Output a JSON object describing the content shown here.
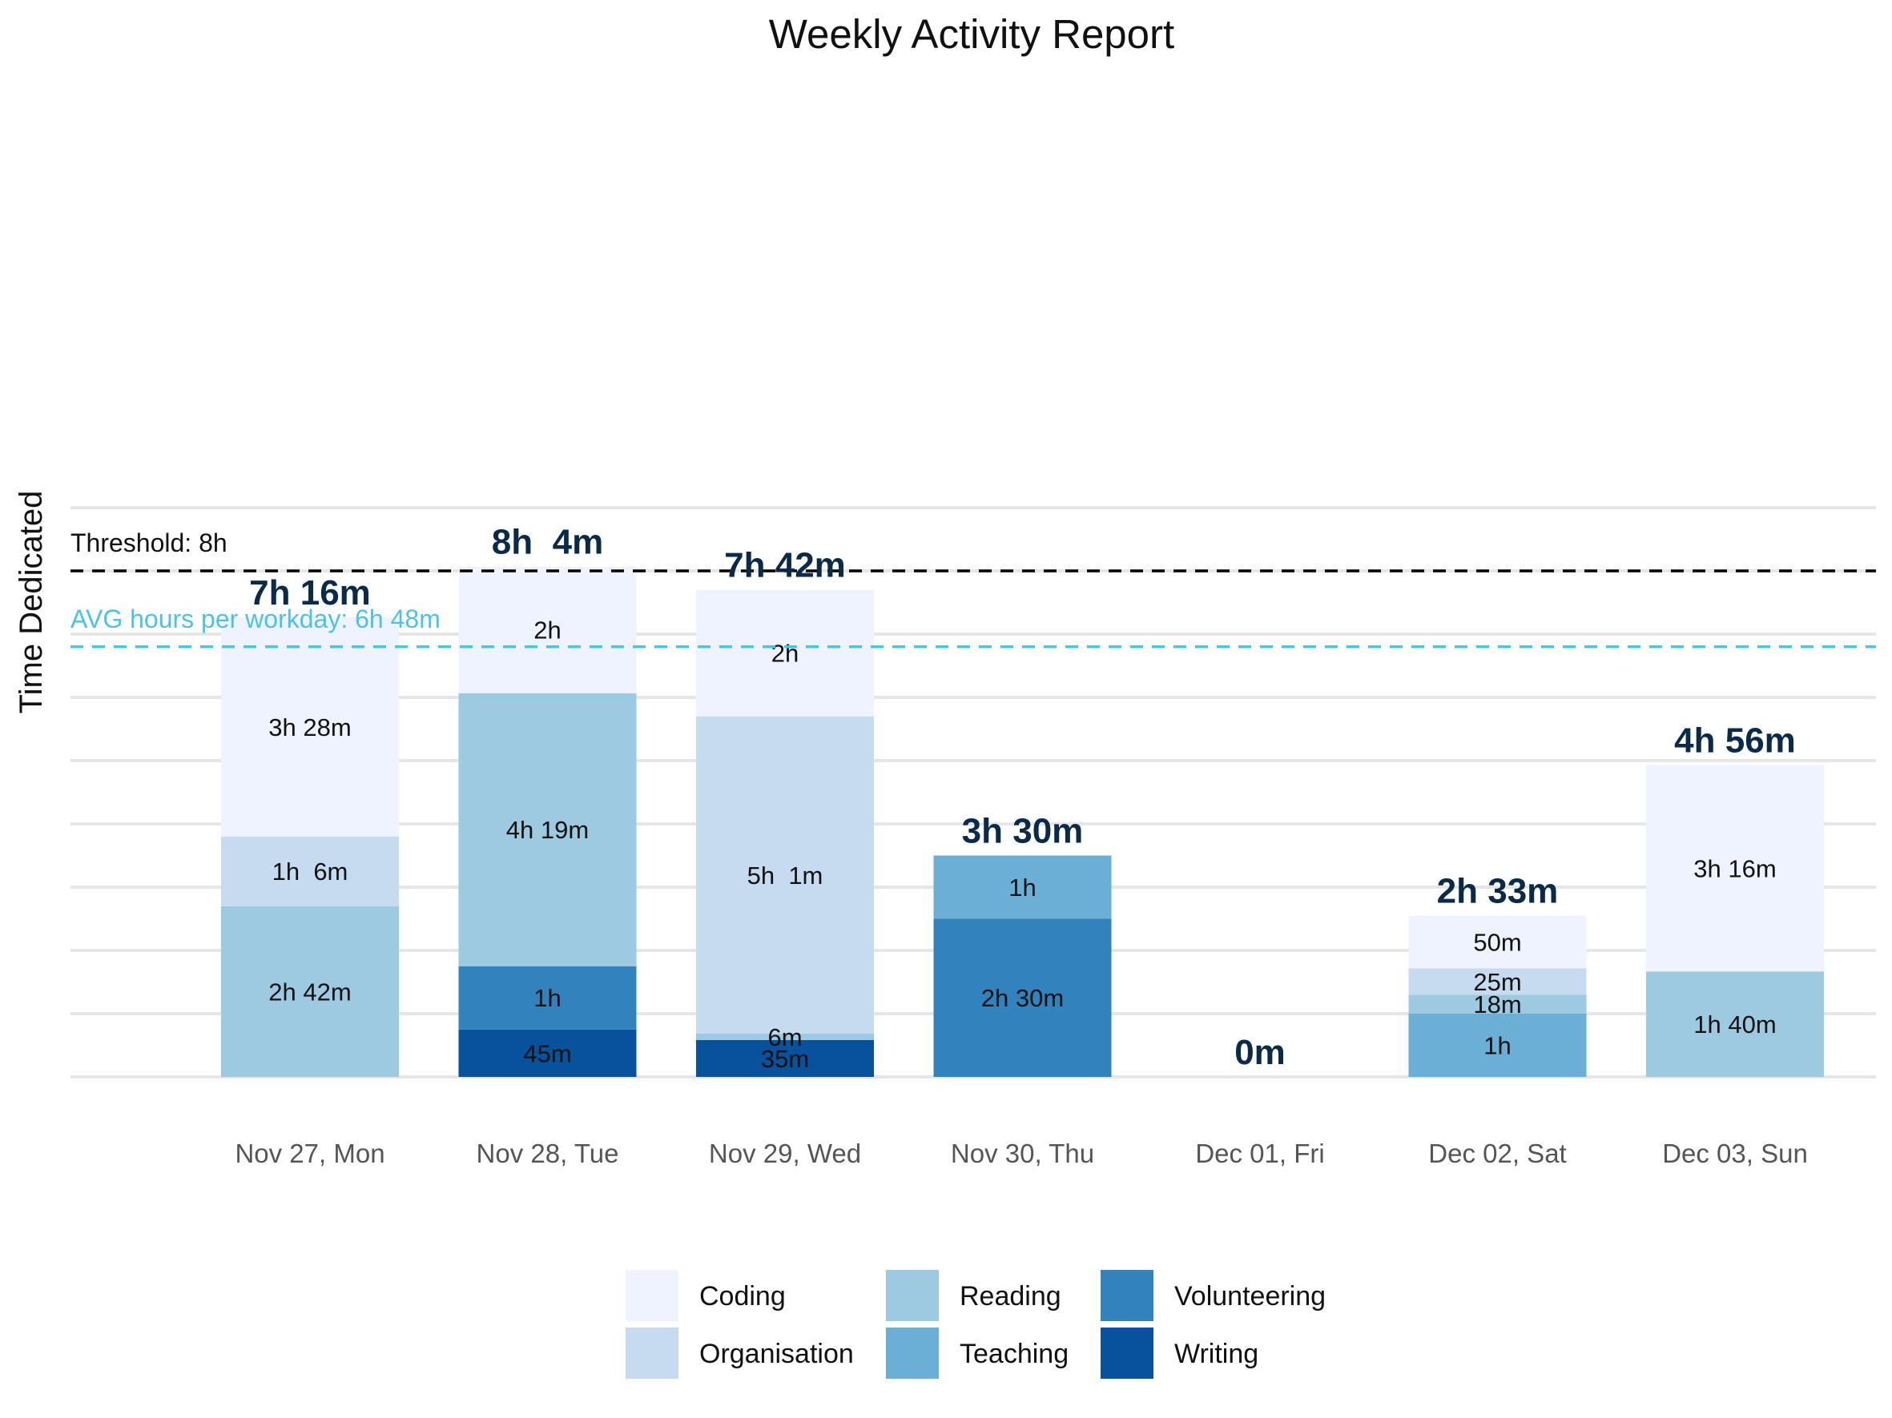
{
  "chart_data": {
    "type": "bar",
    "stacked": true,
    "title": "Weekly Activity Report",
    "xlabel": "",
    "ylabel": "Time Dedicated",
    "unit": "minutes",
    "ylim": [
      0,
      540
    ],
    "grid": true,
    "legend_position": "bottom",
    "categories": [
      "Nov 27, Mon",
      "Nov 28, Tue",
      "Nov 29, Wed",
      "Nov 30, Thu",
      "Dec 01, Fri",
      "Dec 02, Sat",
      "Dec 03, Sun"
    ],
    "series": [
      {
        "name": "Writing",
        "color": "#08519c",
        "values": [
          0,
          45,
          35,
          0,
          0,
          0,
          0
        ],
        "labels": [
          "",
          "45m",
          "35m",
          "",
          "",
          "",
          ""
        ]
      },
      {
        "name": "Volunteering",
        "color": "#3182bd",
        "values": [
          0,
          60,
          0,
          150,
          0,
          0,
          0
        ],
        "labels": [
          "",
          "1h",
          "",
          "2h 30m",
          "",
          "",
          ""
        ]
      },
      {
        "name": "Teaching",
        "color": "#6baed6",
        "values": [
          0,
          0,
          0,
          60,
          0,
          60,
          0
        ],
        "labels": [
          "",
          "",
          "",
          "1h",
          "",
          "1h",
          ""
        ]
      },
      {
        "name": "Reading",
        "color": "#9ecae1",
        "values": [
          162,
          259,
          6,
          0,
          0,
          18,
          100
        ],
        "labels": [
          "2h 42m",
          "4h 19m",
          "6m",
          "",
          "",
          "18m",
          "1h 40m"
        ]
      },
      {
        "name": "Organisation",
        "color": "#c6dbef",
        "values": [
          66,
          0,
          301,
          0,
          0,
          25,
          0
        ],
        "labels": [
          "1h  6m",
          "",
          "5h  1m",
          "",
          "",
          "25m",
          ""
        ]
      },
      {
        "name": "Coding",
        "color": "#eff3ff",
        "values": [
          208,
          120,
          120,
          0,
          0,
          50,
          196
        ],
        "labels": [
          "3h 28m",
          "2h",
          "2h",
          "",
          "",
          "50m",
          "3h 16m"
        ]
      }
    ],
    "legend_order": [
      "Coding",
      "Organisation",
      "Reading",
      "Teaching",
      "Volunteering",
      "Writing"
    ],
    "totals": [
      {
        "value": 436,
        "label": "7h 16m"
      },
      {
        "value": 484,
        "label": "8h  4m"
      },
      {
        "value": 462,
        "label": "7h 42m"
      },
      {
        "value": 210,
        "label": "3h 30m"
      },
      {
        "value": 0,
        "label": "0m"
      },
      {
        "value": 153,
        "label": "2h 33m"
      },
      {
        "value": 296,
        "label": "4h 56m"
      }
    ],
    "reference_lines": [
      {
        "label": "Threshold: 8h",
        "value": 480,
        "color": "#000000"
      },
      {
        "label": "AVG hours per workday: 6h 48m",
        "value": 408,
        "color": "#4cc3e6"
      }
    ]
  }
}
